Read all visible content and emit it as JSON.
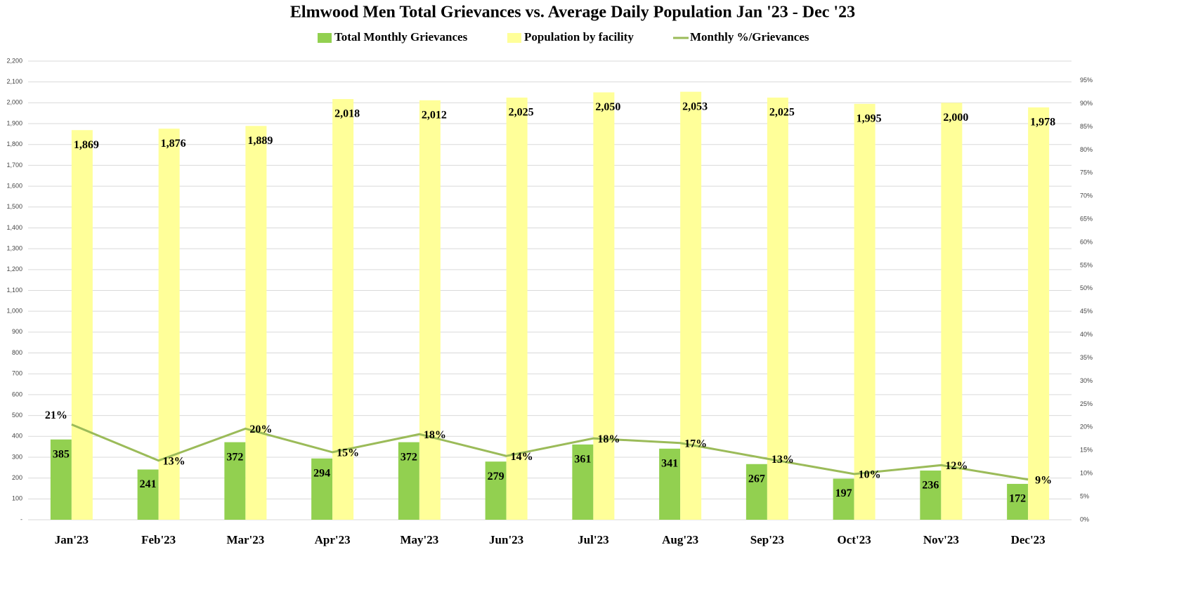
{
  "chart_data": {
    "type": "bar_line",
    "title": "Elmwood Men Total Grievances vs. Average Daily Population Jan '23 - Dec '23",
    "categories": [
      "Jan'23",
      "Feb'23",
      "Mar'23",
      "Apr'23",
      "May'23",
      "Jun'23",
      "Jul'23",
      "Aug'23",
      "Sep'23",
      "Oct'23",
      "Nov'23",
      "Dec'23"
    ],
    "series": [
      {
        "name": "Total Monthly Grievances",
        "color": "#92d050",
        "type": "bar",
        "values": [
          385,
          241,
          372,
          294,
          372,
          279,
          361,
          341,
          267,
          197,
          236,
          172
        ]
      },
      {
        "name": "Population by facility",
        "color": "#ffff99",
        "type": "bar",
        "values": [
          1869,
          1876,
          1889,
          2018,
          2012,
          2025,
          2050,
          2053,
          2025,
          1995,
          2000,
          1978
        ],
        "value_labels": [
          "1,869",
          "1,876",
          "1,889",
          "2,018",
          "2,012",
          "2,025",
          "2,050",
          "2,053",
          "2,025",
          "1,995",
          "2,000",
          "1,978"
        ]
      },
      {
        "name": "Monthly %/Grievances",
        "color": "#9bbb59",
        "type": "line",
        "axis": "y2",
        "values": [
          20.6,
          12.8,
          19.7,
          14.6,
          18.5,
          13.8,
          17.6,
          16.6,
          13.2,
          9.9,
          11.8,
          8.7
        ],
        "value_labels": [
          "21%",
          "13%",
          "20%",
          "15%",
          "18%",
          "14%",
          "18%",
          "17%",
          "13%",
          "10%",
          "12%",
          "9%"
        ]
      }
    ],
    "ylim": [
      0,
      2200
    ],
    "yticks": [
      {
        "value": 0,
        "label": "-"
      },
      100,
      200,
      300,
      400,
      500,
      600,
      700,
      800,
      900,
      {
        "value": 1000,
        "label": "1,000"
      },
      {
        "value": 1100,
        "label": "1,100"
      },
      {
        "value": 1200,
        "label": "1,200"
      },
      {
        "value": 1300,
        "label": "1,300"
      },
      {
        "value": 1400,
        "label": "1,400"
      },
      {
        "value": 1500,
        "label": "1,500"
      },
      {
        "value": 1600,
        "label": "1,600"
      },
      {
        "value": 1700,
        "label": "1,700"
      },
      {
        "value": 1800,
        "label": "1,800"
      },
      {
        "value": 1900,
        "label": "1,900"
      },
      {
        "value": 2000,
        "label": "2,000"
      },
      {
        "value": 2100,
        "label": "2,100"
      },
      {
        "value": 2200,
        "label": "2,200"
      }
    ],
    "y2lim": [
      0,
      99.2
    ],
    "y2ticks": [
      {
        "value": 0,
        "label": "0%"
      },
      {
        "value": 5,
        "label": "5%"
      },
      {
        "value": 10,
        "label": "10%"
      },
      {
        "value": 15,
        "label": "15%"
      },
      {
        "value": 20,
        "label": "20%"
      },
      {
        "value": 25,
        "label": "25%"
      },
      {
        "value": 30,
        "label": "30%"
      },
      {
        "value": 35,
        "label": "35%"
      },
      {
        "value": 40,
        "label": "40%"
      },
      {
        "value": 45,
        "label": "45%"
      },
      {
        "value": 50,
        "label": "50%"
      },
      {
        "value": 55,
        "label": "55%"
      },
      {
        "value": 60,
        "label": "60%"
      },
      {
        "value": 65,
        "label": "65%"
      },
      {
        "value": 70,
        "label": "70%"
      },
      {
        "value": 75,
        "label": "75%"
      },
      {
        "value": 80,
        "label": "80%"
      },
      {
        "value": 85,
        "label": "85%"
      },
      {
        "value": 90,
        "label": "90%"
      },
      {
        "value": 95,
        "label": "95%"
      }
    ],
    "grid": true
  }
}
